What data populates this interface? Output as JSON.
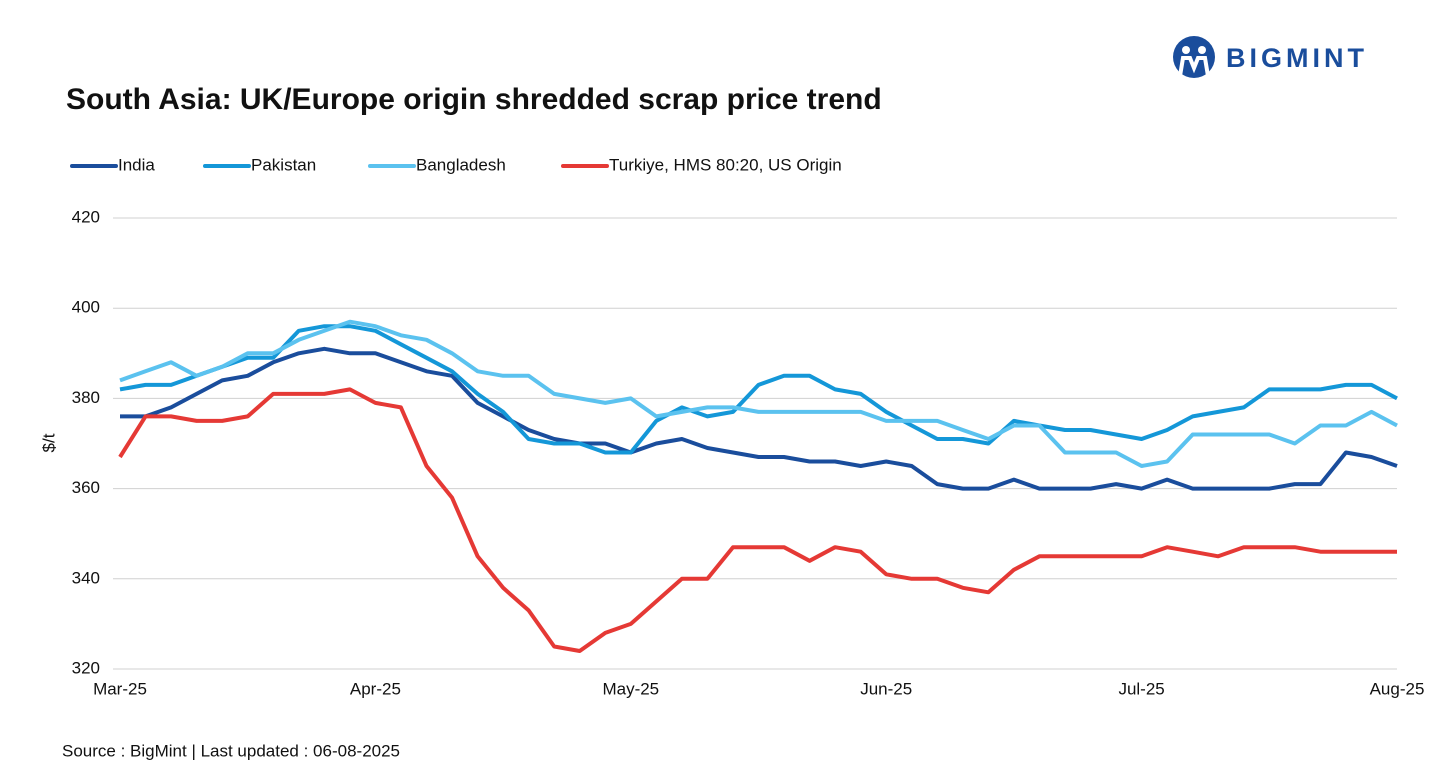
{
  "logo": "BIGMINT",
  "chart_data": {
    "type": "line",
    "title": "South Asia: UK/Europe origin shredded scrap price trend",
    "y_label": "$/t",
    "source": "Source : BigMint | Last updated : 06-08-2025",
    "categories": [
      "Mar-25",
      null,
      null,
      null,
      null,
      null,
      null,
      null,
      null,
      null,
      "Apr-25",
      null,
      null,
      null,
      null,
      null,
      null,
      null,
      null,
      null,
      "May-25",
      null,
      null,
      null,
      null,
      null,
      null,
      null,
      null,
      null,
      "Jun-25",
      null,
      null,
      null,
      null,
      null,
      null,
      null,
      null,
      null,
      "Jul-25",
      null,
      null,
      null,
      null,
      null,
      null,
      null,
      null,
      null,
      "Aug-25"
    ],
    "ylim": [
      320,
      420
    ],
    "yticks": [
      320,
      340,
      360,
      380,
      400,
      420
    ],
    "grid": true,
    "series": [
      {
        "name": "India",
        "color": "#1a4d9c",
        "values": [
          376,
          376,
          378,
          381,
          384,
          385,
          388,
          390,
          391,
          390,
          390,
          388,
          386,
          385,
          379,
          376,
          373,
          371,
          370,
          370,
          368,
          370,
          371,
          369,
          368,
          367,
          367,
          366,
          366,
          365,
          366,
          365,
          361,
          360,
          360,
          362,
          360,
          360,
          360,
          361,
          360,
          362,
          360,
          360,
          360,
          360,
          361,
          361,
          368,
          367,
          365
        ]
      },
      {
        "name": "Pakistan",
        "color": "#1497d8",
        "values": [
          382,
          383,
          383,
          385,
          387,
          389,
          389,
          395,
          396,
          396,
          395,
          392,
          389,
          386,
          381,
          377,
          371,
          370,
          370,
          368,
          368,
          375,
          378,
          376,
          377,
          383,
          385,
          385,
          382,
          381,
          377,
          374,
          371,
          371,
          370,
          375,
          374,
          373,
          373,
          372,
          371,
          373,
          376,
          377,
          378,
          382,
          382,
          382,
          383,
          383,
          380
        ]
      },
      {
        "name": "Bangladesh",
        "color": "#5bc2ef",
        "values": [
          384,
          386,
          388,
          385,
          387,
          390,
          390,
          393,
          395,
          397,
          396,
          394,
          393,
          390,
          386,
          385,
          385,
          381,
          380,
          379,
          380,
          376,
          377,
          378,
          378,
          377,
          377,
          377,
          377,
          377,
          375,
          375,
          375,
          373,
          371,
          374,
          374,
          368,
          368,
          368,
          365,
          366,
          372,
          372,
          372,
          372,
          370,
          374,
          374,
          377,
          374
        ]
      },
      {
        "name": "Turkiye, HMS 80:20, US Origin",
        "color": "#e53935",
        "values": [
          367,
          376,
          376,
          375,
          375,
          376,
          381,
          381,
          381,
          382,
          379,
          378,
          365,
          358,
          345,
          338,
          333,
          325,
          324,
          328,
          330,
          335,
          340,
          340,
          347,
          347,
          347,
          344,
          347,
          346,
          341,
          340,
          340,
          338,
          337,
          342,
          345,
          345,
          345,
          345,
          345,
          347,
          346,
          345,
          347,
          347,
          347,
          346,
          346,
          346,
          346
        ]
      }
    ]
  }
}
